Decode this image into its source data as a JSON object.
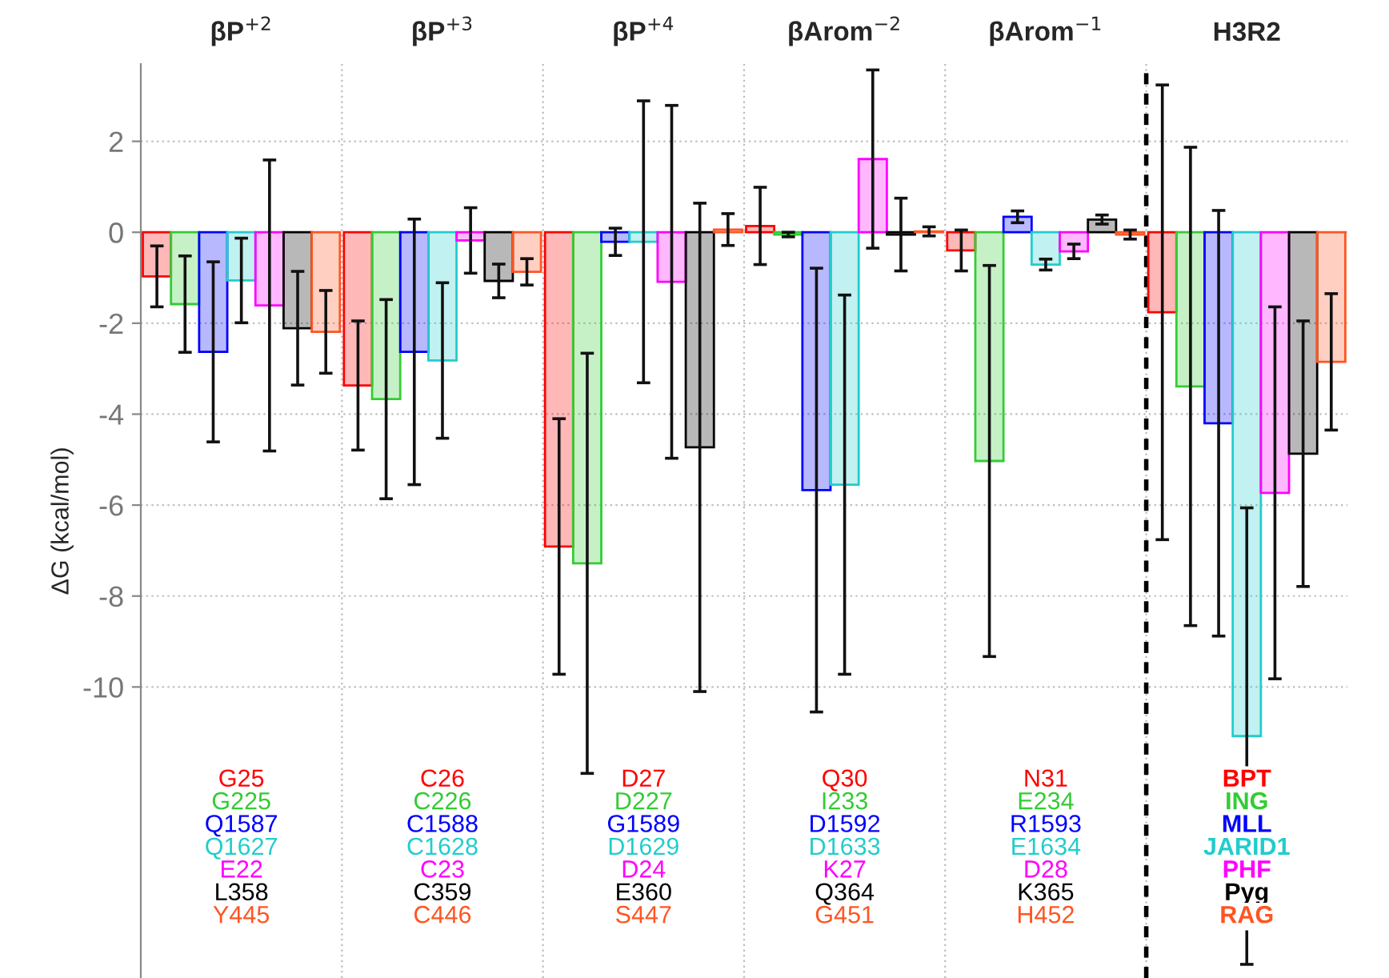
{
  "chart_data": {
    "type": "bar",
    "ylabel": "ΔG (kcal/mol)",
    "categories": [
      "βP$^{+2}$",
      "βP$^{+3}$",
      "βP$^{+4}$",
      "βArom$^{−2}$",
      "βArom$^{−1}$",
      "H3R2"
    ],
    "series": [
      {
        "name": "BPT",
        "color": "#ff0000",
        "values": [
          -0.97,
          -3.37,
          -6.91,
          0.14,
          -0.4,
          -1.76
        ],
        "errors": [
          0.67,
          1.42,
          2.81,
          0.85,
          0.45,
          5.0
        ]
      },
      {
        "name": "ING",
        "color": "#33cc33",
        "values": [
          -1.58,
          -3.67,
          -7.28,
          -0.05,
          -5.03,
          -3.39
        ],
        "errors": [
          1.06,
          2.19,
          4.62,
          0.05,
          4.3,
          5.26
        ]
      },
      {
        "name": "MLL",
        "color": "#0000ff",
        "values": [
          -2.63,
          -2.63,
          -0.21,
          -5.67,
          0.34,
          -4.2
        ],
        "errors": [
          1.98,
          2.92,
          0.3,
          4.88,
          0.13,
          4.68
        ]
      },
      {
        "name": "JARID1",
        "color": "#22cccc",
        "values": [
          -1.06,
          -2.82,
          -0.21,
          -5.55,
          -0.71,
          -11.08
        ],
        "errors": [
          0.93,
          1.71,
          3.1,
          4.17,
          0.12,
          5.02
        ]
      },
      {
        "name": "PHF",
        "color": "#ff00ff",
        "values": [
          -1.61,
          -0.18,
          -1.09,
          1.61,
          -0.42,
          -5.73
        ],
        "errors": [
          3.2,
          0.72,
          3.88,
          1.96,
          0.16,
          4.09
        ]
      },
      {
        "name": "Pyg",
        "color": "#000000",
        "values": [
          -2.11,
          -1.07,
          -4.73,
          -0.05,
          0.28,
          -4.87
        ],
        "errors": [
          1.25,
          0.37,
          5.37,
          0.8,
          0.1,
          2.92
        ]
      },
      {
        "name": "RAG",
        "color": "#ff5522",
        "values": [
          -2.19,
          -0.87,
          0.06,
          0.02,
          -0.05,
          -2.85
        ],
        "errors": [
          0.91,
          0.29,
          0.35,
          0.1,
          0.1,
          1.5
        ]
      }
    ],
    "ylim": [
      -16.4,
      3.7
    ],
    "yticks": [
      2,
      0,
      -2,
      -4,
      -6,
      -8,
      -10
    ],
    "grid": true,
    "annotations": [
      "G25",
      "G225",
      "Q1587",
      "Q1627",
      "E22",
      "L358",
      "Y445",
      "C26",
      "C226",
      "C1588",
      "C1628",
      "C23",
      "C359",
      "C446",
      "D27",
      "D227",
      "G1589",
      "D1629",
      "D24",
      "E360",
      "S447",
      "Q30",
      "I233",
      "D1592",
      "D1633",
      "K27",
      "Q364",
      "G451",
      "N31",
      "E234",
      "R1593",
      "E1634",
      "D28",
      "K365",
      "H452"
    ]
  }
}
